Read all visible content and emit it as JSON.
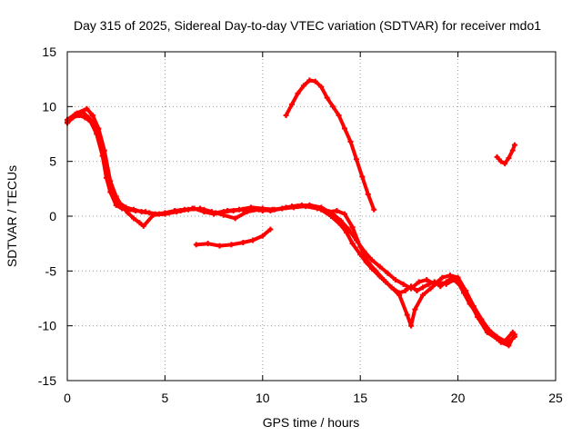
{
  "chart_data": {
    "type": "scatter",
    "title": "Day 315 of 2025, Sidereal Day-to-day VTEC variation (SDTVAR) for receiver mdo1",
    "xlabel": "GPS time / hours",
    "ylabel": "SDTVAR / TECUs",
    "xlim": [
      0,
      25
    ],
    "ylim": [
      -15,
      15
    ],
    "xticks": [
      "0",
      "5",
      "10",
      "15",
      "20",
      "25"
    ],
    "yticks": [
      "15",
      "10",
      "5",
      "0",
      "-5",
      "-10",
      "-15"
    ],
    "grid": true,
    "legend": "none",
    "series_color": "#ff0000",
    "series": [
      {
        "name": "track-main-a",
        "x": [
          0.0,
          0.3,
          0.6,
          0.9,
          1.2,
          1.5,
          1.8,
          2.0,
          2.2,
          2.5,
          2.8,
          3.1,
          3.5,
          4.0,
          4.5,
          5.0,
          5.5,
          6.0,
          6.5,
          7.0,
          7.5,
          8.0,
          8.5,
          9.0,
          9.5,
          10.0,
          10.5,
          11.0,
          11.5,
          12.0,
          12.5,
          13.0,
          13.5,
          14.0,
          14.3,
          14.6,
          15.0,
          15.3,
          15.6,
          16.0,
          16.3,
          16.6,
          17.0,
          17.3,
          17.6,
          17.9,
          18.2,
          18.5,
          18.8,
          19.1,
          19.4,
          19.7,
          20.0,
          20.3,
          20.6,
          21.0,
          21.4,
          21.8,
          22.2,
          22.6,
          22.9
        ],
        "y": [
          8.5,
          9.0,
          9.2,
          9.0,
          8.6,
          7.5,
          5.5,
          3.5,
          2.2,
          1.0,
          0.7,
          0.6,
          0.5,
          0.4,
          0.2,
          0.3,
          0.5,
          0.6,
          0.7,
          0.4,
          0.2,
          0.4,
          0.5,
          0.6,
          0.7,
          0.5,
          0.6,
          0.7,
          0.9,
          1.0,
          0.9,
          0.6,
          0.0,
          -0.8,
          -1.5,
          -2.5,
          -3.5,
          -4.2,
          -4.8,
          -5.5,
          -6.0,
          -6.5,
          -7.0,
          -6.8,
          -6.4,
          -6.8,
          -6.5,
          -6.2,
          -6.0,
          -6.4,
          -6.0,
          -5.6,
          -6.0,
          -7.0,
          -8.0,
          -9.0,
          -10.0,
          -10.8,
          -11.5,
          -11.8,
          -10.8
        ]
      },
      {
        "name": "track-main-b",
        "x": [
          0.0,
          0.4,
          0.8,
          1.1,
          1.4,
          1.7,
          2.0,
          2.3,
          2.6,
          3.0,
          3.4,
          3.8,
          4.2,
          4.7,
          5.2,
          5.8,
          6.4,
          7.0,
          7.6,
          8.2,
          8.8,
          9.4,
          10.0,
          10.6,
          11.2,
          11.8,
          12.4,
          13.0,
          13.6,
          14.0,
          14.4,
          14.8,
          15.2,
          15.6,
          16.0,
          16.4,
          16.8,
          17.2,
          17.6,
          18.0,
          18.4,
          18.8,
          19.2,
          19.6,
          20.0,
          20.4,
          20.8,
          21.2,
          21.6,
          22.0,
          22.4,
          22.8
        ],
        "y": [
          8.8,
          9.3,
          9.5,
          9.0,
          8.3,
          6.8,
          4.2,
          2.4,
          1.3,
          0.8,
          0.6,
          0.4,
          0.3,
          0.2,
          0.3,
          0.5,
          0.7,
          0.6,
          0.3,
          0.5,
          0.6,
          0.8,
          0.7,
          0.6,
          0.8,
          0.9,
          1.0,
          0.8,
          0.2,
          -0.4,
          -1.2,
          -2.2,
          -3.2,
          -4.0,
          -4.6,
          -5.2,
          -5.8,
          -6.2,
          -6.6,
          -6.0,
          -5.8,
          -6.2,
          -5.6,
          -5.4,
          -5.6,
          -6.8,
          -8.2,
          -9.4,
          -10.4,
          -11.0,
          -11.4,
          -10.6
        ]
      },
      {
        "name": "track-main-c",
        "x": [
          0.0,
          0.5,
          1.0,
          1.3,
          1.6,
          1.9,
          2.2,
          2.5,
          2.8,
          3.1,
          3.4,
          3.7,
          3.9,
          4.4,
          5.0,
          5.6,
          6.2,
          6.8,
          7.4,
          8.0,
          8.6,
          9.2,
          9.8,
          10.4,
          11.0,
          11.6,
          12.2,
          12.8,
          13.4,
          13.8,
          14.2,
          14.6,
          15.0,
          15.4,
          15.8,
          16.2,
          16.6,
          17.0,
          17.4,
          17.6,
          17.8,
          18.2,
          18.6,
          19.0,
          19.4,
          19.8,
          20.2,
          20.6,
          21.0,
          21.5,
          22.0,
          22.5,
          22.9
        ],
        "y": [
          8.6,
          9.4,
          9.8,
          9.2,
          8.0,
          6.0,
          3.2,
          1.8,
          0.9,
          0.3,
          -0.2,
          -0.6,
          -0.9,
          0.1,
          0.2,
          0.4,
          0.6,
          0.7,
          0.4,
          0.1,
          -0.2,
          0.4,
          0.6,
          0.5,
          0.7,
          0.8,
          0.9,
          0.7,
          0.4,
          0.5,
          0.2,
          -1.0,
          -2.8,
          -4.2,
          -5.0,
          -5.8,
          -6.5,
          -7.2,
          -9.0,
          -10.0,
          -8.5,
          -7.2,
          -6.6,
          -6.0,
          -6.2,
          -5.8,
          -6.5,
          -7.8,
          -9.2,
          -10.6,
          -11.2,
          -11.6,
          -11.0
        ]
      },
      {
        "name": "track-segment-1",
        "x": [
          6.6,
          7.2,
          7.8,
          8.4,
          9.0,
          9.5,
          10.0,
          10.4
        ],
        "y": [
          -2.6,
          -2.5,
          -2.7,
          -2.6,
          -2.4,
          -2.2,
          -1.8,
          -1.2
        ]
      },
      {
        "name": "track-segment-2",
        "x": [
          11.2,
          11.5,
          11.8,
          12.1,
          12.4,
          12.7,
          13.0,
          13.3,
          13.6,
          13.9,
          14.2,
          14.5,
          14.8,
          15.1,
          15.4,
          15.7
        ],
        "y": [
          9.2,
          10.2,
          11.2,
          11.9,
          12.4,
          12.3,
          11.8,
          10.8,
          10.0,
          9.2,
          8.0,
          6.8,
          5.2,
          3.6,
          2.0,
          0.6
        ]
      },
      {
        "name": "track-segment-3",
        "x": [
          22.0,
          22.2,
          22.4,
          22.6,
          22.8,
          22.9
        ],
        "y": [
          5.4,
          5.0,
          4.8,
          5.3,
          6.0,
          6.5
        ]
      }
    ]
  }
}
